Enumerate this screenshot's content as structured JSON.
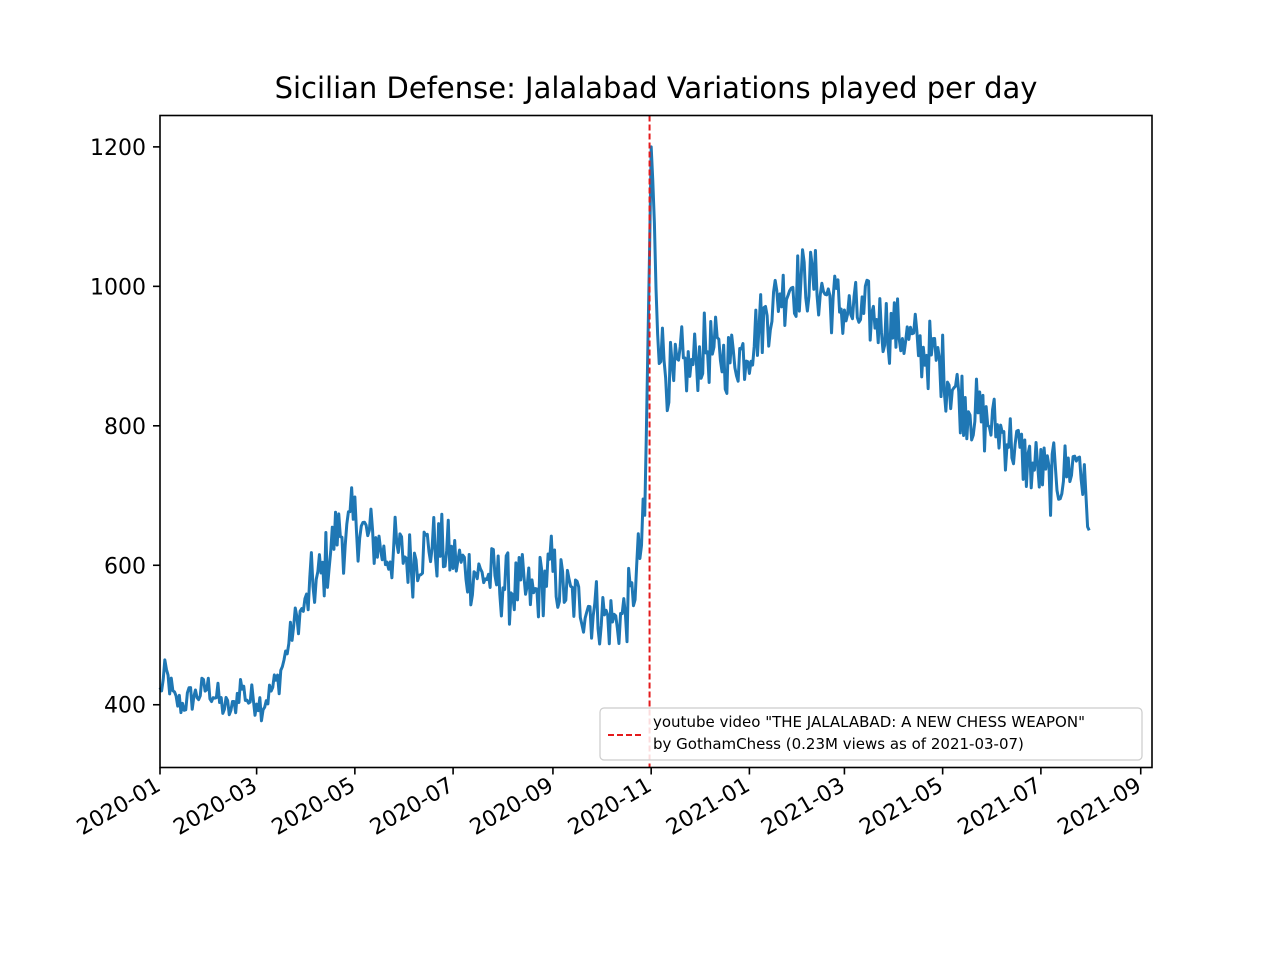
{
  "chart_data": {
    "type": "line",
    "title": "Sicilian Defense: Jalalabad Variations played per day",
    "xlabel": "",
    "ylabel": "",
    "grid": false,
    "legend_position": "lower-right",
    "xlim": [
      "2020-01-01",
      "2021-09-08"
    ],
    "ylim": [
      310,
      1245
    ],
    "x_ticks": [
      "2020-01",
      "2020-03",
      "2020-05",
      "2020-07",
      "2020-09",
      "2020-11",
      "2021-01",
      "2021-03",
      "2021-05",
      "2021-07",
      "2021-09"
    ],
    "y_ticks": [
      400,
      600,
      800,
      1000,
      1200
    ],
    "series": [
      {
        "name": "",
        "color": "#1f77b4",
        "points": [
          [
            "2020-01-01",
            420
          ],
          [
            "2020-01-05",
            445
          ],
          [
            "2020-01-10",
            405
          ],
          [
            "2020-01-15",
            400
          ],
          [
            "2020-01-20",
            410
          ],
          [
            "2020-01-25",
            415
          ],
          [
            "2020-01-31",
            425
          ],
          [
            "2020-02-05",
            410
          ],
          [
            "2020-02-10",
            395
          ],
          [
            "2020-02-15",
            390
          ],
          [
            "2020-02-20",
            430
          ],
          [
            "2020-02-25",
            405
          ],
          [
            "2020-03-01",
            410
          ],
          [
            "2020-03-05",
            400
          ],
          [
            "2020-03-10",
            420
          ],
          [
            "2020-03-15",
            440
          ],
          [
            "2020-03-20",
            480
          ],
          [
            "2020-03-25",
            520
          ],
          [
            "2020-03-31",
            540
          ],
          [
            "2020-04-05",
            570
          ],
          [
            "2020-04-10",
            585
          ],
          [
            "2020-04-15",
            615
          ],
          [
            "2020-04-20",
            650
          ],
          [
            "2020-04-25",
            640
          ],
          [
            "2020-05-01",
            665
          ],
          [
            "2020-05-05",
            655
          ],
          [
            "2020-05-10",
            640
          ],
          [
            "2020-05-15",
            635
          ],
          [
            "2020-05-20",
            610
          ],
          [
            "2020-05-25",
            620
          ],
          [
            "2020-05-31",
            615
          ],
          [
            "2020-06-05",
            605
          ],
          [
            "2020-06-10",
            620
          ],
          [
            "2020-06-15",
            630
          ],
          [
            "2020-06-20",
            625
          ],
          [
            "2020-06-25",
            620
          ],
          [
            "2020-06-30",
            610
          ],
          [
            "2020-07-05",
            605
          ],
          [
            "2020-07-10",
            595
          ],
          [
            "2020-07-15",
            590
          ],
          [
            "2020-07-20",
            585
          ],
          [
            "2020-07-25",
            580
          ],
          [
            "2020-07-31",
            575
          ],
          [
            "2020-08-05",
            565
          ],
          [
            "2020-08-10",
            565
          ],
          [
            "2020-08-15",
            560
          ],
          [
            "2020-08-20",
            555
          ],
          [
            "2020-08-25",
            575
          ],
          [
            "2020-08-31",
            595
          ],
          [
            "2020-09-05",
            570
          ],
          [
            "2020-09-10",
            560
          ],
          [
            "2020-09-15",
            550
          ],
          [
            "2020-09-20",
            545
          ],
          [
            "2020-09-25",
            540
          ],
          [
            "2020-09-30",
            535
          ],
          [
            "2020-10-05",
            525
          ],
          [
            "2020-10-10",
            520
          ],
          [
            "2020-10-15",
            530
          ],
          [
            "2020-10-20",
            550
          ],
          [
            "2020-10-25",
            615
          ],
          [
            "2020-10-28",
            660
          ],
          [
            "2020-10-31",
            1050
          ],
          [
            "2020-11-01",
            1200
          ],
          [
            "2020-11-05",
            950
          ],
          [
            "2020-11-10",
            880
          ],
          [
            "2020-11-15",
            860
          ],
          [
            "2020-11-20",
            890
          ],
          [
            "2020-11-25",
            880
          ],
          [
            "2020-11-30",
            900
          ],
          [
            "2020-12-05",
            910
          ],
          [
            "2020-12-10",
            905
          ],
          [
            "2020-12-15",
            900
          ],
          [
            "2020-12-20",
            895
          ],
          [
            "2020-12-25",
            905
          ],
          [
            "2020-12-31",
            910
          ],
          [
            "2021-01-05",
            935
          ],
          [
            "2021-01-10",
            955
          ],
          [
            "2021-01-15",
            975
          ],
          [
            "2021-01-20",
            990
          ],
          [
            "2021-01-25",
            1000
          ],
          [
            "2021-01-31",
            1005
          ],
          [
            "2021-02-05",
            1010
          ],
          [
            "2021-02-10",
            1005
          ],
          [
            "2021-02-15",
            995
          ],
          [
            "2021-02-20",
            985
          ],
          [
            "2021-02-25",
            975
          ],
          [
            "2021-02-28",
            965
          ],
          [
            "2021-03-05",
            960
          ],
          [
            "2021-03-10",
            955
          ],
          [
            "2021-03-15",
            960
          ],
          [
            "2021-03-20",
            955
          ],
          [
            "2021-03-25",
            950
          ],
          [
            "2021-03-31",
            940
          ],
          [
            "2021-04-05",
            930
          ],
          [
            "2021-04-10",
            925
          ],
          [
            "2021-04-15",
            915
          ],
          [
            "2021-04-20",
            905
          ],
          [
            "2021-04-25",
            900
          ],
          [
            "2021-04-30",
            890
          ],
          [
            "2021-05-05",
            865
          ],
          [
            "2021-05-10",
            850
          ],
          [
            "2021-05-15",
            835
          ],
          [
            "2021-05-20",
            820
          ],
          [
            "2021-05-25",
            810
          ],
          [
            "2021-05-31",
            800
          ],
          [
            "2021-06-05",
            795
          ],
          [
            "2021-06-10",
            785
          ],
          [
            "2021-06-15",
            770
          ],
          [
            "2021-06-20",
            755
          ],
          [
            "2021-06-25",
            745
          ],
          [
            "2021-06-30",
            735
          ],
          [
            "2021-07-05",
            725
          ],
          [
            "2021-07-10",
            720
          ],
          [
            "2021-07-15",
            730
          ],
          [
            "2021-07-20",
            745
          ],
          [
            "2021-07-25",
            760
          ],
          [
            "2021-07-28",
            700
          ],
          [
            "2021-07-31",
            650
          ]
        ]
      }
    ],
    "annotation": {
      "type": "vertical-line",
      "x": "2020-10-31",
      "style": "dashed",
      "color": "#e41a1c",
      "label_lines": [
        "youtube video \"THE JALALABAD: A NEW CHESS WEAPON\"",
        "by GothamChess (0.23M views as of 2021-03-07)"
      ]
    }
  }
}
